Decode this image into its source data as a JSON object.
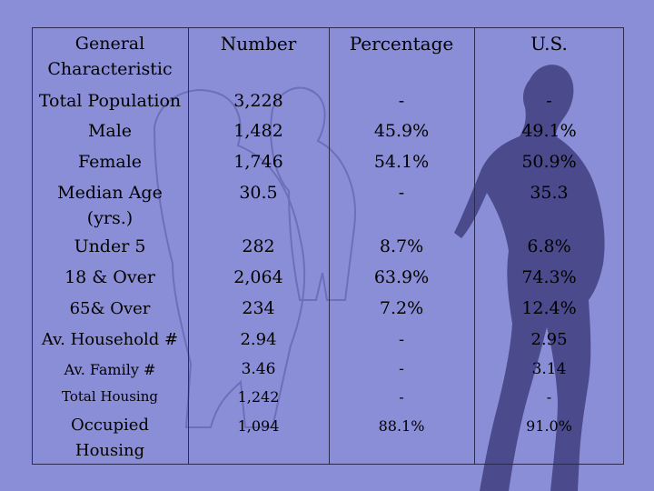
{
  "table": {
    "headers": [
      "General Characteristic",
      "Number",
      "Percentage",
      "U.S."
    ],
    "header_first_line1": "General",
    "header_first_line2": "Characteristic",
    "rows": [
      {
        "label": "Total Population",
        "number": "3,228",
        "percentage": "-",
        "us": "-"
      },
      {
        "label": "Male",
        "number": "1,482",
        "percentage": "45.9%",
        "us": "49.1%"
      },
      {
        "label": "Female",
        "number": "1,746",
        "percentage": "54.1%",
        "us": "50.9%"
      },
      {
        "label": "Median Age (yrs.)",
        "label_line1": "Median Age",
        "label_line2": "(yrs.)",
        "number": "30.5",
        "percentage": "-",
        "us": "35.3"
      },
      {
        "label": "Under 5",
        "number": "282",
        "percentage": "8.7%",
        "us": "6.8%"
      },
      {
        "label": "18 & Over",
        "number": "2,064",
        "percentage": "63.9%",
        "us": "74.3%"
      },
      {
        "label": "65& Over",
        "number": "234",
        "percentage": "7.2%",
        "us": "12.4%"
      },
      {
        "label": "Av. Household #",
        "number": "2.94",
        "percentage": "-",
        "us": "2.95"
      },
      {
        "label": "Av. Family #",
        "number": "3.46",
        "percentage": "-",
        "us": "3.14"
      },
      {
        "label": "Total Housing",
        "number": "1,242",
        "percentage": "-",
        "us": "-"
      },
      {
        "label": "Occupied Housing",
        "label_line1": "Occupied",
        "label_line2": "Housing",
        "number": "1,094",
        "percentage": "88.1%",
        "us": "91.0%"
      }
    ]
  },
  "colors": {
    "background": "#8a8ed6",
    "silhouette": "#4a4a8c",
    "rule": "#2a2a55"
  }
}
